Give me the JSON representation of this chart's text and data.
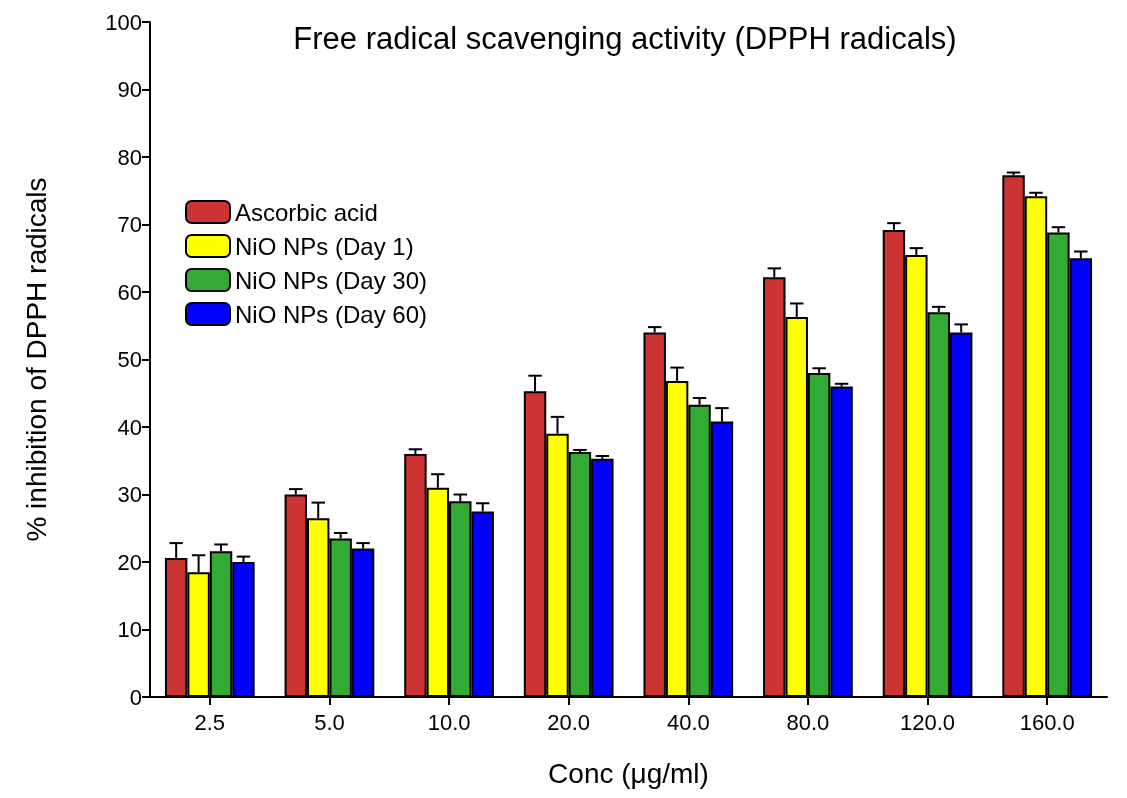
{
  "chart_data": {
    "type": "bar",
    "title": "Free radical scavenging activity (DPPH radicals)",
    "xlabel": "Conc (μg/ml)",
    "ylabel": "% inhibition of DPPH radicals",
    "categories": [
      "2.5",
      "5.0",
      "10.0",
      "20.0",
      "40.0",
      "80.0",
      "120.0",
      "160.0"
    ],
    "series": [
      {
        "name": "Ascorbic acid",
        "color": "#cc3333",
        "values": [
          20.6,
          30,
          36,
          45.3,
          54,
          62.2,
          69.2,
          77.3
        ],
        "errors": [
          [
            20.6,
            22.8
          ],
          [
            30,
            30.8
          ],
          [
            36,
            36.7
          ],
          [
            45.3,
            47.6
          ],
          [
            54,
            54.8
          ],
          [
            62.2,
            63.5
          ],
          [
            69.2,
            70.2
          ],
          [
            77.3,
            77.7
          ]
        ]
      },
      {
        "name": "NiO NPs (Day 1)",
        "color": "#ffff00",
        "values": [
          18.5,
          26.5,
          31,
          39,
          46.8,
          56.3,
          65.5,
          74.2
        ],
        "errors": [
          [
            18.5,
            21
          ],
          [
            26.5,
            28.8
          ],
          [
            31,
            33
          ],
          [
            39,
            41.5
          ],
          [
            46.8,
            48.8
          ],
          [
            56.3,
            58.3
          ],
          [
            65.5,
            66.5
          ],
          [
            74.2,
            74.7
          ]
        ]
      },
      {
        "name": "NiO NPs (Day 30)",
        "color": "#33aa33",
        "values": [
          21.6,
          23.5,
          29,
          36.3,
          43.3,
          48,
          57,
          68.8
        ],
        "errors": [
          [
            21.6,
            22.6
          ],
          [
            23.5,
            24.3
          ],
          [
            29,
            30
          ],
          [
            36.3,
            36.6
          ],
          [
            43.3,
            44.3
          ],
          [
            48,
            48.7
          ],
          [
            57,
            57.8
          ],
          [
            68.8,
            69.6
          ]
        ]
      },
      {
        "name": "NiO NPs (Day 60)",
        "color": "#0000ff",
        "values": [
          20,
          22,
          27.5,
          35.3,
          40.8,
          46,
          54,
          65
        ],
        "errors": [
          [
            20,
            20.8
          ],
          [
            22,
            22.8
          ],
          [
            27.5,
            28.7
          ],
          [
            35.3,
            35.7
          ],
          [
            40.8,
            42.8
          ],
          [
            46,
            46.4
          ],
          [
            54,
            55.2
          ],
          [
            65,
            66
          ]
        ]
      }
    ],
    "ylim": [
      0,
      100
    ],
    "yticks": [
      0,
      10,
      20,
      30,
      40,
      50,
      60,
      70,
      80,
      90,
      100
    ],
    "grid": false,
    "legend": "top left"
  }
}
